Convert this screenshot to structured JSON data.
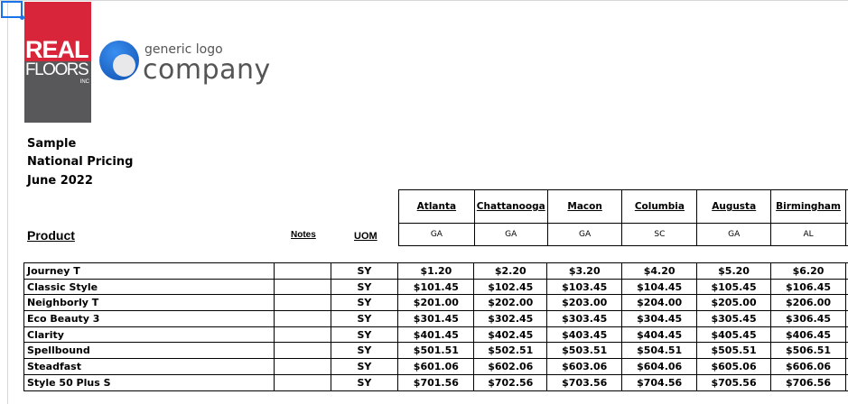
{
  "logos": {
    "left": "REAL FLOORS INC",
    "right": "generic logo company"
  },
  "title_lines": [
    "Sample",
    "National Pricing",
    "June 2022"
  ],
  "headers": {
    "product": "Product",
    "notes": "Notes",
    "uom": "UOM"
  },
  "cities": [
    {
      "name": "Atlanta",
      "state": "GA"
    },
    {
      "name": "Chattanooga",
      "state": "GA"
    },
    {
      "name": "Macon",
      "state": "GA"
    },
    {
      "name": "Columbia",
      "state": "SC"
    },
    {
      "name": "Augusta",
      "state": "GA"
    },
    {
      "name": "Birmingham",
      "state": "AL"
    }
  ],
  "rows": [
    {
      "product": "Journey T",
      "notes": "",
      "uom": "SY",
      "prices": [
        "$1.20",
        "$2.20",
        "$3.20",
        "$4.20",
        "$5.20",
        "$6.20"
      ]
    },
    {
      "product": "Classic Style",
      "notes": "",
      "uom": "SY",
      "prices": [
        "$101.45",
        "$102.45",
        "$103.45",
        "$104.45",
        "$105.45",
        "$106.45"
      ]
    },
    {
      "product": " Neighborly T",
      "notes": "",
      "uom": "SY",
      "prices": [
        "$201.00",
        "$202.00",
        "$203.00",
        "$204.00",
        "$205.00",
        "$206.00"
      ]
    },
    {
      "product": "Eco Beauty 3",
      "notes": "",
      "uom": "SY",
      "prices": [
        "$301.45",
        "$302.45",
        "$303.45",
        "$304.45",
        "$305.45",
        "$306.45"
      ]
    },
    {
      "product": "Clarity",
      "notes": "",
      "uom": "SY",
      "prices": [
        "$401.45",
        "$402.45",
        "$403.45",
        "$404.45",
        "$405.45",
        "$406.45"
      ]
    },
    {
      "product": "Spellbound",
      "notes": "",
      "uom": "SY",
      "prices": [
        "$501.51",
        "$502.51",
        "$503.51",
        "$504.51",
        "$505.51",
        "$506.51"
      ]
    },
    {
      "product": "Steadfast",
      "notes": "",
      "uom": "SY",
      "prices": [
        "$601.06",
        "$602.06",
        "$603.06",
        "$604.06",
        "$605.06",
        "$606.06"
      ]
    },
    {
      "product": "Style 50 Plus S",
      "notes": "",
      "uom": "SY",
      "prices": [
        "$701.56",
        "$702.56",
        "$703.56",
        "$704.56",
        "$705.56",
        "$706.56"
      ]
    }
  ]
}
